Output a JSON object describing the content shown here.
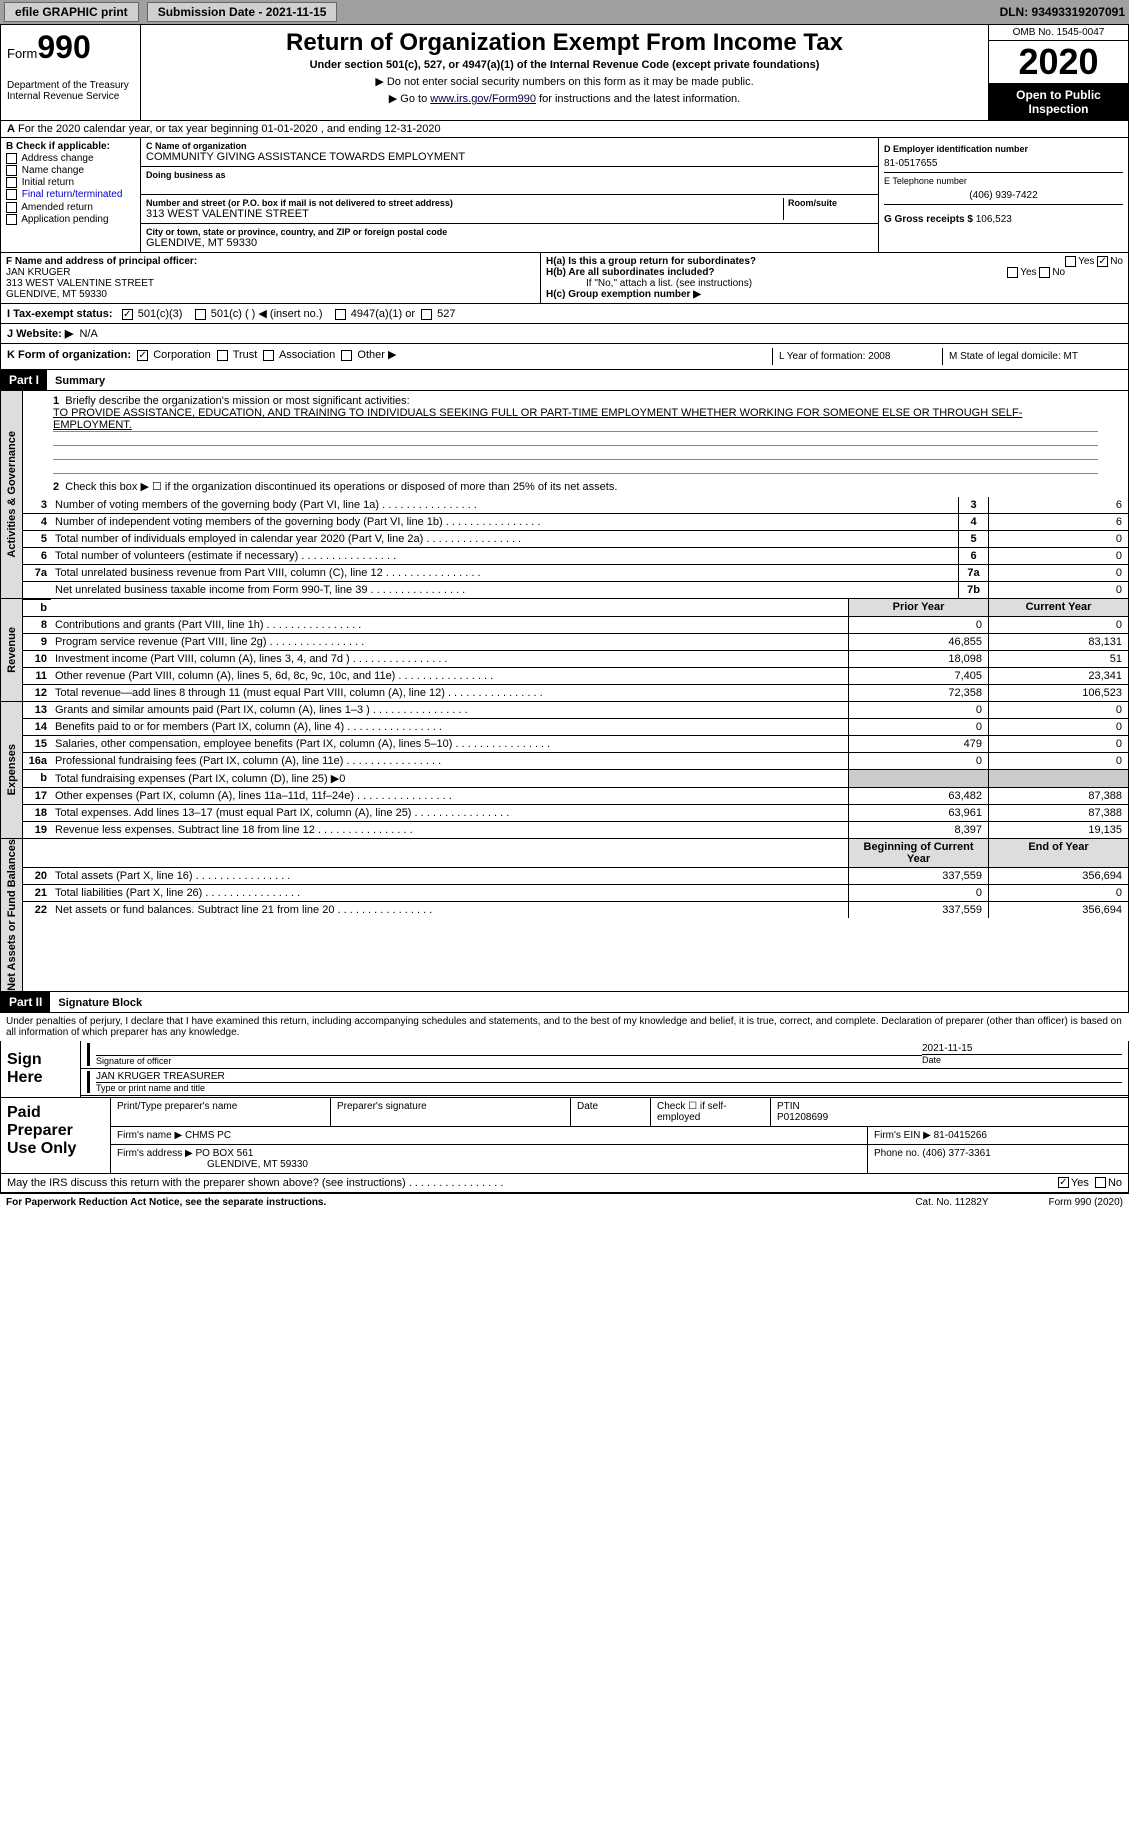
{
  "topbar": {
    "efile": "efile GRAPHIC print",
    "submission": "Submission Date - 2021-11-15",
    "dln": "DLN: 93493319207091"
  },
  "header": {
    "form": "Form",
    "formnum": "990",
    "dept": "Department of the Treasury\nInternal Revenue Service",
    "title": "Return of Organization Exempt From Income Tax",
    "subtitle": "Under section 501(c), 527, or 4947(a)(1) of the Internal Revenue Code (except private foundations)",
    "instr1": "▶ Do not enter social security numbers on this form as it may be made public.",
    "instr2_pre": "▶ Go to ",
    "instr2_link": "www.irs.gov/Form990",
    "instr2_post": " for instructions and the latest information.",
    "omb": "OMB No. 1545-0047",
    "year": "2020",
    "inspect": "Open to Public Inspection"
  },
  "lineA": "For the 2020 calendar year, or tax year beginning 01-01-2020    , and ending 12-31-2020",
  "boxB": {
    "label": "B Check if applicable:",
    "opts": [
      "Address change",
      "Name change",
      "Initial return",
      "Final return/terminated",
      "Amended return",
      "Application pending"
    ]
  },
  "boxC": {
    "name_label": "C Name of organization",
    "name": "COMMUNITY GIVING ASSISTANCE TOWARDS EMPLOYMENT",
    "dba_label": "Doing business as",
    "dba": "",
    "addr_label": "Number and street (or P.O. box if mail is not delivered to street address)",
    "room_label": "Room/suite",
    "addr": "313 WEST VALENTINE STREET",
    "city_label": "City or town, state or province, country, and ZIP or foreign postal code",
    "city": "GLENDIVE, MT  59330"
  },
  "boxD": {
    "ein_label": "D Employer identification number",
    "ein": "81-0517655",
    "tel_label": "E Telephone number",
    "tel": "(406) 939-7422",
    "gross_label": "G Gross receipts $",
    "gross": "106,523"
  },
  "boxF": {
    "label": "F  Name and address of principal officer:",
    "name": "JAN KRUGER",
    "addr1": "313 WEST VALENTINE STREET",
    "addr2": "GLENDIVE, MT  59330"
  },
  "boxH": {
    "ha": "H(a)  Is this a group return for subordinates?",
    "hb": "H(b)  Are all subordinates included?",
    "hb_note": "If \"No,\" attach a list. (see instructions)",
    "hc": "H(c)  Group exemption number ▶"
  },
  "rowI": {
    "label": "I    Tax-exempt status:",
    "opt1": "501(c)(3)",
    "opt2": "501(c) (  ) ◀ (insert no.)",
    "opt3": "4947(a)(1) or",
    "opt4": "527"
  },
  "rowJ": {
    "label": "J   Website: ▶",
    "val": "N/A"
  },
  "rowK": {
    "label": "K Form of organization:",
    "opts": [
      "Corporation",
      "Trust",
      "Association",
      "Other ▶"
    ],
    "L": "L Year of formation: 2008",
    "M": "M State of legal domicile: MT"
  },
  "part1": {
    "hdr": "Part I",
    "title": "Summary"
  },
  "mission": {
    "q1": "Briefly describe the organization's mission or most significant activities:",
    "text": "TO PROVIDE ASSISTANCE, EDUCATION, AND TRAINING TO INDIVIDUALS SEEKING FULL OR PART-TIME EMPLOYMENT WHETHER WORKING FOR SOMEONE ELSE OR THROUGH SELF-EMPLOYMENT.",
    "q2": "Check this box ▶ ☐  if the organization discontinued its operations or disposed of more than 25% of its net assets."
  },
  "gov_rows": [
    {
      "n": "3",
      "d": "Number of voting members of the governing body (Part VI, line 1a)",
      "box": "3",
      "v": "6"
    },
    {
      "n": "4",
      "d": "Number of independent voting members of the governing body (Part VI, line 1b)",
      "box": "4",
      "v": "6"
    },
    {
      "n": "5",
      "d": "Total number of individuals employed in calendar year 2020 (Part V, line 2a)",
      "box": "5",
      "v": "0"
    },
    {
      "n": "6",
      "d": "Total number of volunteers (estimate if necessary)",
      "box": "6",
      "v": "0"
    },
    {
      "n": "7a",
      "d": "Total unrelated business revenue from Part VIII, column (C), line 12",
      "box": "7a",
      "v": "0"
    },
    {
      "n": "",
      "d": "Net unrelated business taxable income from Form 990-T, line 39",
      "box": "7b",
      "v": "0"
    }
  ],
  "col_hdrs": {
    "prior": "Prior Year",
    "current": "Current Year",
    "boy": "Beginning of Current Year",
    "eoy": "End of Year"
  },
  "rev_rows": [
    {
      "n": "8",
      "d": "Contributions and grants (Part VIII, line 1h)",
      "p": "0",
      "c": "0"
    },
    {
      "n": "9",
      "d": "Program service revenue (Part VIII, line 2g)",
      "p": "46,855",
      "c": "83,131"
    },
    {
      "n": "10",
      "d": "Investment income (Part VIII, column (A), lines 3, 4, and 7d )",
      "p": "18,098",
      "c": "51"
    },
    {
      "n": "11",
      "d": "Other revenue (Part VIII, column (A), lines 5, 6d, 8c, 9c, 10c, and 11e)",
      "p": "7,405",
      "c": "23,341"
    },
    {
      "n": "12",
      "d": "Total revenue—add lines 8 through 11 (must equal Part VIII, column (A), line 12)",
      "p": "72,358",
      "c": "106,523"
    }
  ],
  "exp_rows": [
    {
      "n": "13",
      "d": "Grants and similar amounts paid (Part IX, column (A), lines 1–3 )",
      "p": "0",
      "c": "0"
    },
    {
      "n": "14",
      "d": "Benefits paid to or for members (Part IX, column (A), line 4)",
      "p": "0",
      "c": "0"
    },
    {
      "n": "15",
      "d": "Salaries, other compensation, employee benefits (Part IX, column (A), lines 5–10)",
      "p": "479",
      "c": "0"
    },
    {
      "n": "16a",
      "d": "Professional fundraising fees (Part IX, column (A), line 11e)",
      "p": "0",
      "c": "0"
    },
    {
      "n": "b",
      "d": "Total fundraising expenses (Part IX, column (D), line 25) ▶0",
      "p": "",
      "c": "",
      "shaded": true
    },
    {
      "n": "17",
      "d": "Other expenses (Part IX, column (A), lines 11a–11d, 11f–24e)",
      "p": "63,482",
      "c": "87,388"
    },
    {
      "n": "18",
      "d": "Total expenses. Add lines 13–17 (must equal Part IX, column (A), line 25)",
      "p": "63,961",
      "c": "87,388"
    },
    {
      "n": "19",
      "d": "Revenue less expenses. Subtract line 18 from line 12",
      "p": "8,397",
      "c": "19,135"
    }
  ],
  "net_rows": [
    {
      "n": "20",
      "d": "Total assets (Part X, line 16)",
      "p": "337,559",
      "c": "356,694"
    },
    {
      "n": "21",
      "d": "Total liabilities (Part X, line 26)",
      "p": "0",
      "c": "0"
    },
    {
      "n": "22",
      "d": "Net assets or fund balances. Subtract line 21 from line 20",
      "p": "337,559",
      "c": "356,694"
    }
  ],
  "vtabs": {
    "gov": "Activities & Governance",
    "rev": "Revenue",
    "exp": "Expenses",
    "net": "Net Assets or Fund Balances"
  },
  "part2": {
    "hdr": "Part II",
    "title": "Signature Block"
  },
  "sig": {
    "decl": "Under penalties of perjury, I declare that I have examined this return, including accompanying schedules and statements, and to the best of my knowledge and belief, it is true, correct, and complete. Declaration of preparer (other than officer) is based on all information of which preparer has any knowledge.",
    "sign_here": "Sign Here",
    "sig_label": "Signature of officer",
    "date_label": "Date",
    "date": "2021-11-15",
    "name": "JAN KRUGER TREASURER",
    "name_label": "Type or print name and title"
  },
  "paid": {
    "label": "Paid Preparer Use Only",
    "r1": {
      "c1": "Print/Type preparer's name",
      "c2": "Preparer's signature",
      "c3": "Date",
      "c4": "Check ☐ if self-employed",
      "c5": "PTIN",
      "ptin": "P01208699"
    },
    "r2": {
      "firm_label": "Firm's name   ▶",
      "firm": "CHMS PC",
      "ein_label": "Firm's EIN ▶",
      "ein": "81-0415266"
    },
    "r3": {
      "addr_label": "Firm's address ▶",
      "addr": "PO BOX 561",
      "city": "GLENDIVE, MT  59330",
      "ph_label": "Phone no.",
      "ph": "(406) 377-3361"
    }
  },
  "discuss": "May the IRS discuss this return with the preparer shown above? (see instructions)",
  "footer": {
    "left": "For Paperwork Reduction Act Notice, see the separate instructions.",
    "mid": "Cat. No. 11282Y",
    "right": "Form 990 (2020)"
  }
}
